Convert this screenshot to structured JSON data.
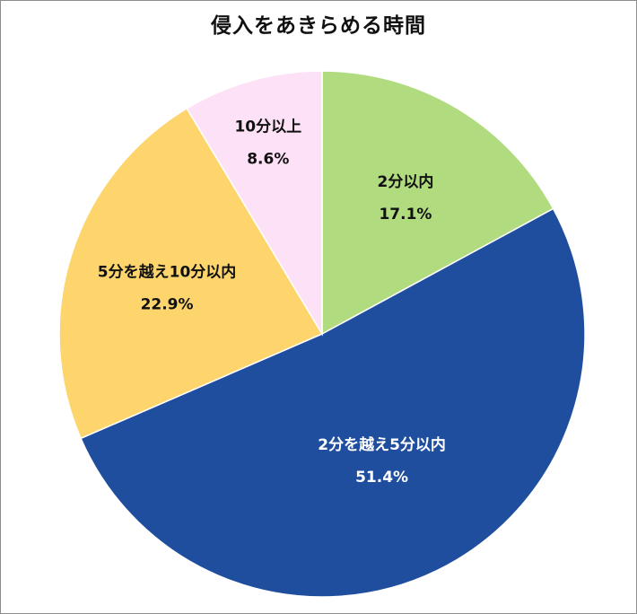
{
  "chart_data": {
    "type": "pie",
    "title": "侵入をあきらめる時間",
    "start_angle_deg": 0,
    "direction": "clockwise",
    "slices": [
      {
        "label": "2分以内",
        "value": 17.1,
        "value_text": "17.1%",
        "color": "#b1db7f",
        "text_color": "#111111"
      },
      {
        "label": "2分を越え5分以内",
        "value": 51.4,
        "value_text": "51.4%",
        "color": "#1f4e9f",
        "text_color": "#ffffff"
      },
      {
        "label": "5分を越え10分以内",
        "value": 22.9,
        "value_text": "22.9%",
        "color": "#fdd56c",
        "text_color": "#111111"
      },
      {
        "label": "10分以上",
        "value": 8.6,
        "value_text": "8.6%",
        "color": "#fde1f6",
        "text_color": "#111111"
      }
    ],
    "legend": "none"
  }
}
